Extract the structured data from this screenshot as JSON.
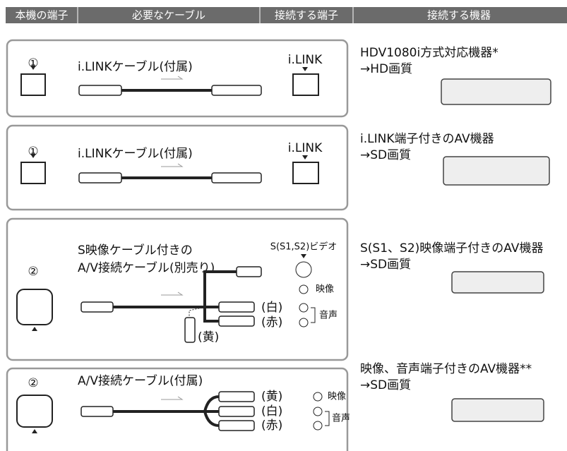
{
  "header": {
    "columns": [
      "本機の端子",
      "必要なケーブル",
      "接続する端子",
      "接続する機器"
    ]
  },
  "rows": [
    {
      "port": "①",
      "cable": [
        "i.LINKケーブル(付属)"
      ],
      "terminal": "i.LINK",
      "device": "HDV1080i方式対応機器*",
      "quality": "→HD画質"
    },
    {
      "port": "①",
      "cable": [
        "i.LINKケーブル(付属)"
      ],
      "terminal": "i.LINK",
      "device": "i.LINK端子付きのAV機器",
      "quality": "→SD画質"
    },
    {
      "port": "②",
      "cable": [
        "S映像ケーブル付きの",
        "A/V接続ケーブル(別売り)"
      ],
      "terminal": "S(S1,S2)ビデオ",
      "plugs": [
        "(白)",
        "(赤)",
        "(黄)"
      ],
      "jacks": [
        "映像",
        "音声"
      ],
      "device": "S(S1、S2)映像端子付きのAV機器",
      "quality": "→SD画質"
    },
    {
      "port": "②",
      "cable": [
        "A/V接続ケーブル(付属)"
      ],
      "plugs": [
        "(黄)",
        "(白)",
        "(赤)"
      ],
      "jacks": [
        "映像",
        "音声"
      ],
      "device": "映像、音声端子付きのAV機器**",
      "quality": "→SD画質"
    }
  ]
}
